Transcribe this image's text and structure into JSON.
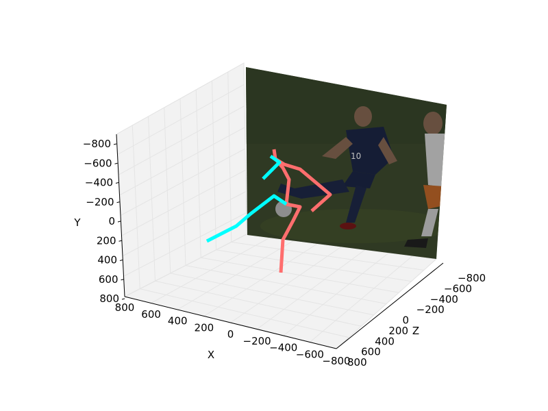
{
  "chart_data": {
    "type": "line",
    "projection": "3d",
    "x_axis": {
      "label": "X",
      "ticks": [
        "800",
        "600",
        "400",
        "200",
        "0",
        "−200",
        "−400",
        "−600",
        "−800"
      ]
    },
    "y_axis": {
      "label": "Y",
      "ticks": [
        "−800",
        "−600",
        "−400",
        "−200",
        "0",
        "200",
        "400",
        "600",
        "800"
      ]
    },
    "z_axis": {
      "label": "Z",
      "ticks": [
        "−800",
        "−600",
        "−400",
        "−200",
        "0",
        "200",
        "400",
        "600",
        "800"
      ]
    },
    "grid": true,
    "background_image": "soccer-players-photo",
    "series": [
      {
        "color": "#ff6e6e",
        "segments": [
          [
            [
              400,
              218
            ],
            [
              402,
              232
            ]
          ],
          [
            [
              402,
              232
            ],
            [
              415,
              240
            ],
            [
              438,
              247
            ],
            [
              482,
              284
            ],
            [
              455,
              308
            ]
          ],
          [
            [
              402,
              232
            ],
            [
              413,
              245
            ],
            [
              422,
              262
            ],
            [
              418,
              298
            ]
          ],
          [
            [
              418,
              298
            ],
            [
              438,
              302
            ],
            [
              428,
              322
            ],
            [
              413,
              350
            ],
            [
              410,
              398
            ]
          ]
        ]
      },
      {
        "color": "#00ffff",
        "segments": [
          [
            [
              395,
              228
            ],
            [
              408,
              237
            ],
            [
              384,
              261
            ]
          ],
          [
            [
              302,
              352
            ],
            [
              345,
              330
            ],
            [
              366,
              312
            ],
            [
              400,
              286
            ],
            [
              418,
              298
            ]
          ]
        ]
      }
    ]
  }
}
